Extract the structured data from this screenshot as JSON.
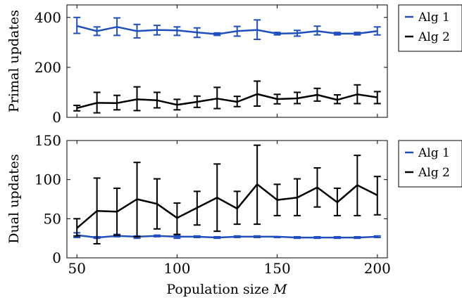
{
  "chart_data": [
    {
      "type": "line",
      "id": "primal",
      "title": "",
      "xlabel": "",
      "ylabel": "Primal updates",
      "x": [
        50,
        60,
        70,
        80,
        90,
        100,
        110,
        120,
        130,
        140,
        150,
        160,
        170,
        180,
        190,
        200
      ],
      "xlim": [
        45,
        205
      ],
      "ylim": [
        0,
        450
      ],
      "yticks": [
        0,
        200,
        400
      ],
      "xticks": [
        50,
        100,
        150,
        200
      ],
      "show_xtick_labels": false,
      "grid": false,
      "legend_position": "outside-right-top",
      "series": [
        {
          "name": "Alg 1",
          "color": "#1f4fbf",
          "values": [
            366,
            345,
            362,
            345,
            350,
            348,
            340,
            333,
            345,
            350,
            335,
            337,
            345,
            335,
            335,
            345
          ],
          "err_low": [
            336,
            328,
            328,
            318,
            330,
            328,
            320,
            328,
            325,
            312,
            330,
            325,
            330,
            330,
            330,
            330
          ],
          "err_high": [
            400,
            362,
            398,
            372,
            368,
            362,
            358,
            338,
            364,
            390,
            340,
            348,
            365,
            340,
            340,
            362
          ]
        },
        {
          "name": "Alg 2",
          "color": "#000000",
          "values": [
            37,
            58,
            57,
            72,
            68,
            50,
            62,
            75,
            62,
            93,
            73,
            76,
            90,
            70,
            92,
            80
          ],
          "err_low": [
            26,
            18,
            30,
            27,
            38,
            30,
            40,
            35,
            43,
            45,
            54,
            55,
            65,
            55,
            55,
            55
          ],
          "err_high": [
            48,
            100,
            88,
            122,
            100,
            72,
            85,
            120,
            84,
            145,
            92,
            100,
            116,
            90,
            130,
            103
          ]
        }
      ]
    },
    {
      "type": "line",
      "id": "dual",
      "title": "",
      "xlabel": "Population size M",
      "ylabel": "Dual updates",
      "x": [
        50,
        60,
        70,
        80,
        90,
        100,
        110,
        120,
        130,
        140,
        150,
        160,
        170,
        180,
        190,
        200
      ],
      "xlim": [
        45,
        205
      ],
      "ylim": [
        0,
        150
      ],
      "yticks": [
        0,
        50,
        100,
        150
      ],
      "xticks": [
        50,
        100,
        150,
        200
      ],
      "show_xtick_labels": true,
      "grid": false,
      "legend_position": "outside-right-top",
      "series": [
        {
          "name": "Alg 1",
          "color": "#1f4fbf",
          "values": [
            29,
            26,
            28,
            27,
            28,
            27,
            27,
            26,
            27,
            27,
            27,
            26,
            26,
            26,
            26,
            27
          ],
          "err_low": [
            26,
            25,
            27,
            25,
            27,
            25,
            26,
            25,
            26,
            26,
            26,
            25,
            25,
            25,
            25,
            26
          ],
          "err_high": [
            32,
            27,
            30,
            28,
            29,
            29,
            28,
            27,
            28,
            28,
            27,
            27,
            27,
            27,
            27,
            28
          ]
        },
        {
          "name": "Alg 2",
          "color": "#000000",
          "values": [
            38,
            60,
            59,
            75,
            69,
            51,
            64,
            77,
            63,
            94,
            74,
            77,
            90,
            71,
            93,
            80
          ],
          "err_low": [
            28,
            18,
            29,
            27,
            37,
            30,
            42,
            34,
            43,
            43,
            54,
            54,
            65,
            54,
            54,
            55
          ],
          "err_high": [
            50,
            102,
            89,
            122,
            101,
            70,
            85,
            120,
            85,
            144,
            94,
            101,
            115,
            89,
            131,
            104
          ]
        }
      ]
    }
  ],
  "primal_legend": {
    "items": [
      {
        "label": "Alg 1",
        "color": "#1f4fbf"
      },
      {
        "label": "Alg 2",
        "color": "#000000"
      }
    ]
  },
  "dual_legend": {
    "items": [
      {
        "label": "Alg 1",
        "color": "#1f4fbf"
      },
      {
        "label": "Alg 2",
        "color": "#000000"
      }
    ]
  },
  "xaxis_label_text": "Population size ",
  "xaxis_label_var": "M"
}
